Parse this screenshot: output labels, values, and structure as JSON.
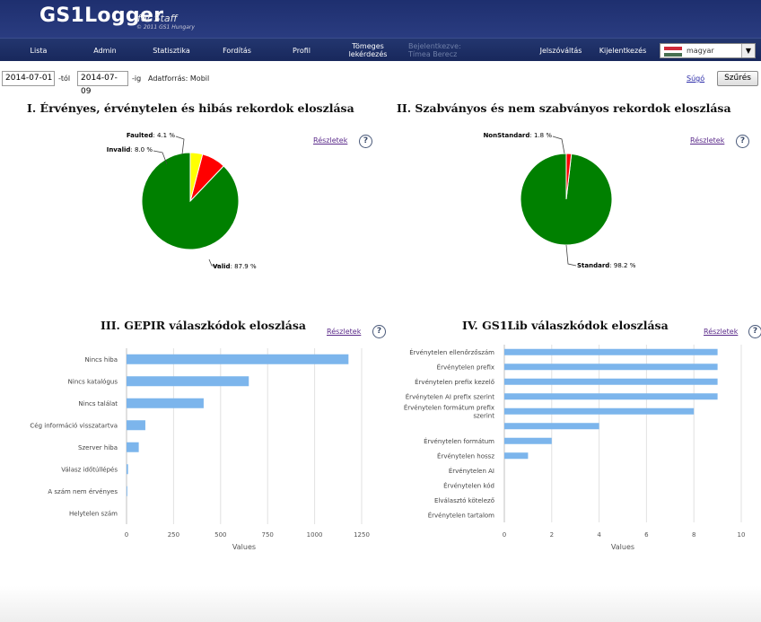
{
  "header": {
    "logo_main": "GS1Logger",
    "logo_sub": "for Staff",
    "logo_copyright": "© 2011 GS1 Hungary"
  },
  "nav": {
    "lista": "Lista",
    "admin": "Admin",
    "statisztika": "Statisztika",
    "forditas": "Fordítás",
    "profil": "Profil",
    "tomeges_line1": "Tömeges",
    "tomeges_line2": "lekérdezés",
    "logged_line1": "Bejelentkezve:",
    "logged_line2": "Tímea Berecz",
    "jelszovaltas": "Jelszóváltás",
    "kijelentkezes": "Kijelentkezés"
  },
  "language": {
    "selected": "magyar",
    "arrow_icon": "chevron-down-icon",
    "flag_colors": [
      "#ce2939",
      "#ffffff",
      "#477050"
    ]
  },
  "filter": {
    "date_from": "2014-07-01",
    "from_label": "-tól",
    "date_to": "2014-07-09",
    "to_label": "-ig",
    "source_label": "Adatforrás: Mobil",
    "help_link": "Súgó",
    "filter_button": "Szűrés"
  },
  "panels": {
    "details_link": "Részletek",
    "help_icon_text": "?"
  },
  "chart_data": [
    {
      "type": "pie",
      "title": "I. Érvényes, érvénytelen és hibás rekordok eloszlása",
      "slices": [
        {
          "label": "Valid",
          "value": 87.9,
          "value_label": "87.9 %",
          "color": "#008000"
        },
        {
          "label": "Invalid",
          "value": 8.0,
          "value_label": "8.0 %",
          "color": "#ff0000"
        },
        {
          "label": "Faulted",
          "value": 4.1,
          "value_label": "4.1 %",
          "color": "#ffff00"
        }
      ]
    },
    {
      "type": "pie",
      "title": "II. Szabványos és nem szabványos rekordok eloszlása",
      "slices": [
        {
          "label": "Standard",
          "value": 98.2,
          "value_label": "98.2 %",
          "color": "#008000"
        },
        {
          "label": "NonStandard",
          "value": 1.8,
          "value_label": "1.8 %",
          "color": "#ff0000"
        }
      ]
    },
    {
      "type": "bar",
      "orientation": "horizontal",
      "title": "III. GEPIR válaszkódok eloszlása",
      "xlabel": "Values",
      "xlim": [
        0,
        1250
      ],
      "xticks": [
        0,
        250,
        500,
        750,
        1000,
        1250
      ],
      "bar_color": "#7cb5ec",
      "categories": [
        "Nincs hiba",
        "Nincs katalógus",
        "Nincs találat",
        "Cég információ visszatartva",
        "Szerver hiba",
        "Válasz időtúllépés",
        "A szám nem érvényes",
        "Helytelen szám"
      ],
      "values": [
        1180,
        650,
        410,
        100,
        65,
        8,
        4,
        0
      ]
    },
    {
      "type": "bar",
      "orientation": "horizontal",
      "title": "IV. GS1Lib válaszkódok eloszlása",
      "xlabel": "Values",
      "xlim": [
        0,
        10
      ],
      "xticks": [
        0,
        2,
        4,
        6,
        8,
        10
      ],
      "bar_color": "#7cb5ec",
      "categories": [
        "Érvénytelen ellenőrzőszám",
        "Érvénytelen prefix",
        "Érvénytelen prefix kezelő",
        "Érvénytelen AI prefix szerint",
        "Érvénytelen formátum prefix szerint",
        "",
        "Érvénytelen formátum",
        "Érvénytelen hossz",
        "Érvénytelen AI",
        "Érvénytelen kód",
        "Elválasztó kötelező",
        "Érvénytelen tartalom"
      ],
      "values": [
        9,
        9,
        9,
        9,
        8,
        4,
        2,
        1,
        0,
        0,
        0,
        0
      ]
    }
  ]
}
